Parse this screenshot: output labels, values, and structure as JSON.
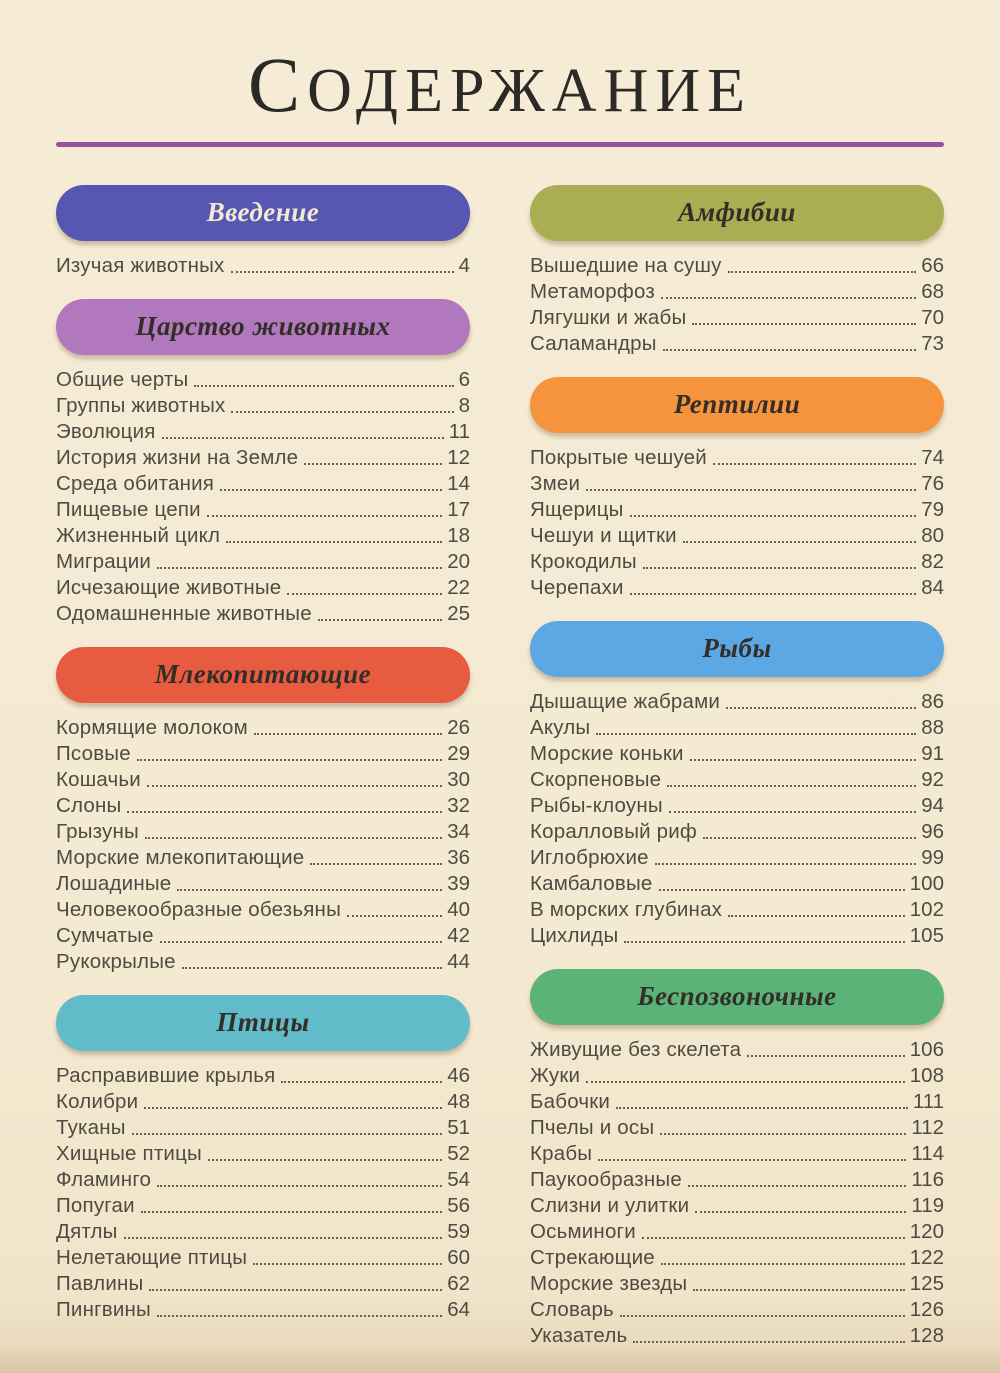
{
  "page": {
    "title": "СОДЕРЖАНИЕ",
    "background_color": "#f4e9d1",
    "divider_color": "#9b4f9f",
    "entry_text_color": "#4e4c42"
  },
  "sections": [
    {
      "id": "vvedenie",
      "title": "Введение",
      "pill_color": "#5757b2",
      "title_color": "#f3ead6",
      "column": "left",
      "entries": [
        {
          "label": "Изучая животных",
          "page": "4"
        }
      ]
    },
    {
      "id": "tsarstvo-zhivotnykh",
      "title": "Царство животных",
      "pill_color": "#b278bd",
      "title_color": "#332e28",
      "column": "left",
      "entries": [
        {
          "label": "Общие черты",
          "page": "6"
        },
        {
          "label": "Группы животных",
          "page": "8"
        },
        {
          "label": "Эволюция",
          "page": "11"
        },
        {
          "label": "История жизни на Земле",
          "page": "12"
        },
        {
          "label": "Среда обитания",
          "page": "14"
        },
        {
          "label": "Пищевые цепи",
          "page": "17"
        },
        {
          "label": "Жизненный цикл",
          "page": "18"
        },
        {
          "label": "Миграции",
          "page": "20"
        },
        {
          "label": "Исчезающие животные",
          "page": "22"
        },
        {
          "label": "Одомашненные животные",
          "page": "25"
        }
      ]
    },
    {
      "id": "mlekopitayushchie",
      "title": "Млекопитающие",
      "pill_color": "#e75c40",
      "title_color": "#332e28",
      "column": "left",
      "entries": [
        {
          "label": "Кормящие молоком",
          "page": "26"
        },
        {
          "label": "Псовые",
          "page": "29"
        },
        {
          "label": "Кошачьи",
          "page": "30"
        },
        {
          "label": "Слоны",
          "page": "32"
        },
        {
          "label": "Грызуны",
          "page": "34"
        },
        {
          "label": "Морские млекопитающие",
          "page": "36"
        },
        {
          "label": "Лошадиные",
          "page": "39"
        },
        {
          "label": "Человекообразные обезьяны",
          "page": "40"
        },
        {
          "label": "Сумчатые",
          "page": "42"
        },
        {
          "label": "Рукокрылые",
          "page": "44"
        }
      ]
    },
    {
      "id": "ptitsy",
      "title": "Птицы",
      "pill_color": "#62bbc8",
      "title_color": "#332e28",
      "column": "left",
      "entries": [
        {
          "label": "Расправившие крылья",
          "page": "46"
        },
        {
          "label": "Колибри",
          "page": "48"
        },
        {
          "label": "Туканы",
          "page": "51"
        },
        {
          "label": "Хищные птицы",
          "page": "52"
        },
        {
          "label": "Фламинго",
          "page": "54"
        },
        {
          "label": "Попугаи",
          "page": "56"
        },
        {
          "label": "Дятлы",
          "page": "59"
        },
        {
          "label": "Нелетающие птицы",
          "page": "60"
        },
        {
          "label": "Павлины",
          "page": "62"
        },
        {
          "label": "Пингвины",
          "page": "64"
        }
      ]
    },
    {
      "id": "amfibii",
      "title": "Амфибии",
      "pill_color": "#aaad51",
      "title_color": "#332e28",
      "column": "right",
      "entries": [
        {
          "label": "Вышедшие на сушу",
          "page": "66"
        },
        {
          "label": "Метаморфоз",
          "page": "68"
        },
        {
          "label": "Лягушки и жабы",
          "page": "70"
        },
        {
          "label": "Саламандры",
          "page": "73"
        }
      ]
    },
    {
      "id": "reptilii",
      "title": "Рептилии",
      "pill_color": "#f6933d",
      "title_color": "#332e28",
      "column": "right",
      "entries": [
        {
          "label": "Покрытые чешуей",
          "page": "74"
        },
        {
          "label": "Змеи",
          "page": "76"
        },
        {
          "label": "Ящерицы",
          "page": "79"
        },
        {
          "label": "Чешуи и щитки",
          "page": "80"
        },
        {
          "label": "Крокодилы",
          "page": "82"
        },
        {
          "label": "Черепахи",
          "page": "84"
        }
      ]
    },
    {
      "id": "ryby",
      "title": "Рыбы",
      "pill_color": "#5ba8e4",
      "title_color": "#332e28",
      "column": "right",
      "entries": [
        {
          "label": "Дышащие жабрами",
          "page": "86"
        },
        {
          "label": "Акулы",
          "page": "88"
        },
        {
          "label": "Морские коньки",
          "page": "91"
        },
        {
          "label": "Скорпеновые",
          "page": "92"
        },
        {
          "label": "Рыбы-клоуны",
          "page": "94"
        },
        {
          "label": "Коралловый риф",
          "page": "96"
        },
        {
          "label": "Иглобрюхие",
          "page": "99"
        },
        {
          "label": "Камбаловые",
          "page": "100"
        },
        {
          "label": "В морских глубинах",
          "page": "102"
        },
        {
          "label": "Цихлиды",
          "page": "105"
        }
      ]
    },
    {
      "id": "bespozvonochnye",
      "title": "Беспозвоночные",
      "pill_color": "#5cb377",
      "title_color": "#332e28",
      "column": "right",
      "entries": [
        {
          "label": "Живущие без скелета",
          "page": "106"
        },
        {
          "label": "Жуки",
          "page": "108"
        },
        {
          "label": "Бабочки",
          "page": "111"
        },
        {
          "label": "Пчелы и осы",
          "page": "112"
        },
        {
          "label": "Крабы",
          "page": "114"
        },
        {
          "label": "Паукообразные",
          "page": "116"
        },
        {
          "label": "Слизни и улитки",
          "page": "119"
        },
        {
          "label": "Осьминоги",
          "page": "120"
        },
        {
          "label": "Стрекающие",
          "page": "122"
        },
        {
          "label": "Морские звезды",
          "page": "125"
        },
        {
          "label": "Словарь",
          "page": "126"
        },
        {
          "label": "Указатель",
          "page": "128"
        }
      ]
    }
  ]
}
